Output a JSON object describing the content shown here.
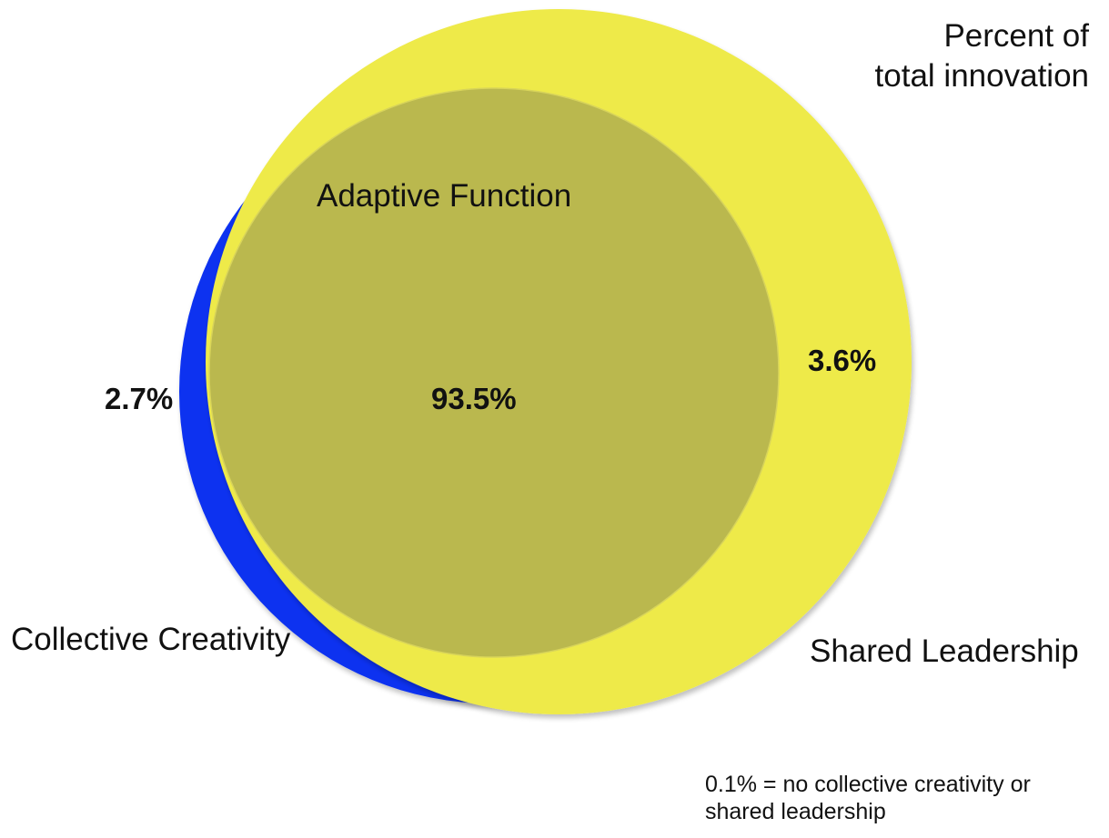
{
  "diagram": {
    "type": "venn",
    "legend_title": [
      "Percent of",
      "total innovation"
    ],
    "sets": {
      "collective_creativity": {
        "label": "Collective Creativity",
        "color": "#0a32f0"
      },
      "shared_leadership": {
        "label": "Shared Leadership",
        "color": "#eeea4a"
      },
      "adaptive_function": {
        "label": "Adaptive Function",
        "color": "#bab84e"
      }
    },
    "regions": {
      "overlap": "93.5%",
      "collective_only": "2.7%",
      "shared_only": "3.6%"
    },
    "footnote": [
      "0.1% = no collective creativity or",
      "shared leadership"
    ]
  }
}
